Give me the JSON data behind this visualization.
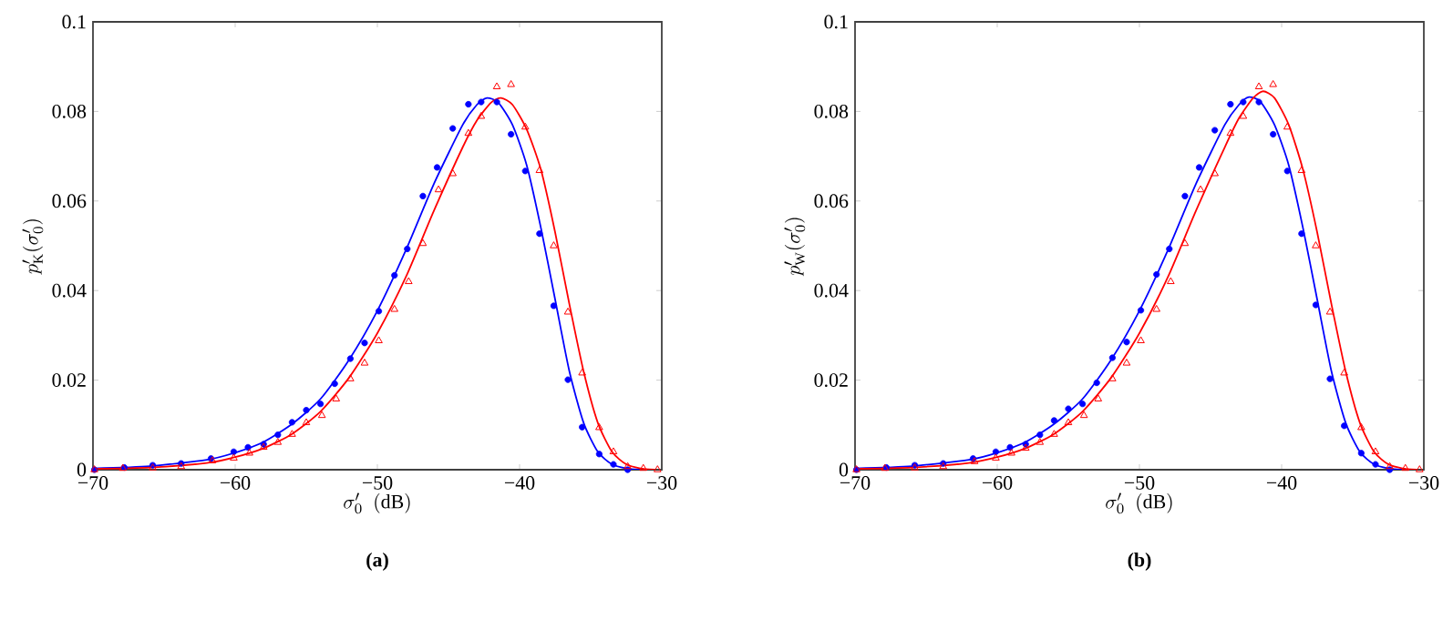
{
  "chart_data": [
    {
      "type": "line",
      "xlabel": "\\sigma'_0\\ \\ (\\mathrm{dB})",
      "ylabel": "p'_{\\mathrm{K}}(\\sigma'_0)",
      "annotations": [
        "**(a)**"
      ],
      "grid": false,
      "xlim": [
        -70,
        -30
      ],
      "ylim": [
        0,
        0.1
      ],
      "xticks": [
        {
          "value": -70,
          "label": "−70"
        },
        {
          "value": -60,
          "label": "−60"
        },
        {
          "value": -50,
          "label": "−50"
        },
        {
          "value": -40,
          "label": "−40"
        },
        {
          "value": -30,
          "label": "−30"
        }
      ],
      "yticks": [
        0,
        0.02,
        0.04,
        0.06,
        0.08,
        0.1
      ],
      "series": [
        {
          "type": "scatter",
          "marker": "circle",
          "color": "#0000ff",
          "x": [
            -69.9,
            -67.8,
            -65.8,
            -63.8,
            -61.7,
            -60.1,
            -59.1,
            -58,
            -57,
            -56,
            -55,
            -54,
            -53,
            -51.9,
            -50.9,
            -49.9,
            -48.8,
            -47.9,
            -46.8,
            -45.8,
            -44.7,
            -43.6,
            -42.7,
            -41.6,
            -40.6,
            -39.6,
            -38.6,
            -37.6,
            -36.6,
            -35.6,
            -34.4,
            -33.4,
            -32.4
          ],
          "values": [
            0,
            0.0005,
            0.001,
            0.0014,
            0.0025,
            0.004,
            0.005,
            0.0057,
            0.0078,
            0.0106,
            0.0133,
            0.0147,
            0.0192,
            0.0248,
            0.0283,
            0.0354,
            0.0434,
            0.0493,
            0.0611,
            0.0675,
            0.0762,
            0.0816,
            0.0821,
            0.0821,
            0.0749,
            0.0667,
            0.0527,
            0.0366,
            0.0201,
            0.0095,
            0.0035,
            0.0012,
            0
          ]
        },
        {
          "type": "scatter",
          "marker": "triangle",
          "color": "#ff0000",
          "x": [
            -69.9,
            -67.9,
            -65.8,
            -63.8,
            -61.6,
            -60.1,
            -59,
            -58,
            -57,
            -56,
            -55,
            -53.9,
            -52.9,
            -51.9,
            -50.9,
            -49.9,
            -48.8,
            -47.8,
            -46.8,
            -45.7,
            -44.7,
            -43.6,
            -42.7,
            -41.6,
            -40.6,
            -39.6,
            -38.6,
            -37.6,
            -36.6,
            -35.6,
            -34.4,
            -33.4,
            -32.4,
            -31.3,
            -30.3
          ],
          "values": [
            0,
            0.0003,
            0.0004,
            0.0007,
            0.002,
            0.0026,
            0.0037,
            0.005,
            0.0061,
            0.0079,
            0.0105,
            0.0121,
            0.0158,
            0.0203,
            0.0238,
            0.0288,
            0.0358,
            0.042,
            0.0505,
            0.0625,
            0.0661,
            0.0751,
            0.0789,
            0.0855,
            0.086,
            0.0765,
            0.0668,
            0.05,
            0.0352,
            0.0216,
            0.0094,
            0.004,
            0.0007,
            0.0003,
            0
          ]
        },
        {
          "type": "line",
          "marker": "none",
          "color": "#0000ff",
          "x": [
            -70,
            -66,
            -62,
            -60,
            -58,
            -56,
            -54,
            -52,
            -50,
            -48,
            -46,
            -44,
            -43,
            -42.3,
            -41.5,
            -40.5,
            -39.5,
            -38.5,
            -37.5,
            -36.5,
            -35.5,
            -34.5,
            -33.5,
            -32.5,
            -31.5
          ],
          "values": [
            0.0003,
            0.0008,
            0.0022,
            0.0038,
            0.0062,
            0.0102,
            0.0158,
            0.0245,
            0.0355,
            0.049,
            0.064,
            0.077,
            0.0815,
            0.083,
            0.082,
            0.077,
            0.068,
            0.054,
            0.038,
            0.022,
            0.0105,
            0.004,
            0.0012,
            0.0003,
            0
          ]
        },
        {
          "type": "line",
          "marker": "none",
          "color": "#ff0000",
          "x": [
            -70,
            -66,
            -62,
            -60,
            -58,
            -56,
            -54,
            -52,
            -50,
            -48,
            -46,
            -44,
            -43,
            -42,
            -41.3,
            -40.5,
            -39.5,
            -38.5,
            -37.5,
            -36.5,
            -35.5,
            -34.5,
            -33.5,
            -32.5,
            -31.5,
            -30.5
          ],
          "values": [
            0.0002,
            0.0005,
            0.0015,
            0.0028,
            0.0048,
            0.008,
            0.013,
            0.0205,
            0.0305,
            0.043,
            0.058,
            0.072,
            0.078,
            0.082,
            0.083,
            0.0815,
            0.076,
            0.067,
            0.053,
            0.037,
            0.022,
            0.0105,
            0.004,
            0.0012,
            0.0003,
            0
          ]
        }
      ]
    },
    {
      "type": "line",
      "xlabel": "\\sigma'_0\\ \\ (\\mathrm{dB})",
      "ylabel": "p'_{\\mathrm{W}}(\\sigma'_0)",
      "annotations": [
        "**(b)**"
      ],
      "grid": false,
      "xlim": [
        -70,
        -30
      ],
      "ylim": [
        0,
        0.1
      ],
      "xticks": [
        {
          "value": -70,
          "label": "−70"
        },
        {
          "value": -60,
          "label": "−60"
        },
        {
          "value": -50,
          "label": "−50"
        },
        {
          "value": -40,
          "label": "−40"
        },
        {
          "value": -30,
          "label": "−30"
        }
      ],
      "yticks": [
        0,
        0.02,
        0.04,
        0.06,
        0.08,
        0.1
      ],
      "series": [
        {
          "type": "scatter",
          "marker": "circle",
          "color": "#0000ff",
          "x": [
            -69.9,
            -67.8,
            -65.8,
            -63.8,
            -61.7,
            -60.1,
            -59.1,
            -58,
            -57,
            -56,
            -55,
            -54,
            -53,
            -51.9,
            -50.9,
            -49.9,
            -48.8,
            -47.9,
            -46.8,
            -45.8,
            -44.7,
            -43.6,
            -42.7,
            -41.6,
            -40.6,
            -39.6,
            -38.6,
            -37.6,
            -36.6,
            -35.6,
            -34.4,
            -33.4,
            -32.4
          ],
          "values": [
            0,
            0.0005,
            0.001,
            0.0014,
            0.0025,
            0.004,
            0.005,
            0.0057,
            0.0078,
            0.011,
            0.0136,
            0.0147,
            0.0194,
            0.025,
            0.0285,
            0.0356,
            0.0436,
            0.0493,
            0.0611,
            0.0675,
            0.0758,
            0.0816,
            0.0821,
            0.0821,
            0.0749,
            0.0667,
            0.0527,
            0.0368,
            0.0203,
            0.0098,
            0.0037,
            0.0012,
            0
          ]
        },
        {
          "type": "scatter",
          "marker": "triangle",
          "color": "#ff0000",
          "x": [
            -69.9,
            -67.9,
            -65.8,
            -63.8,
            -61.6,
            -60.1,
            -59,
            -58,
            -57,
            -56,
            -55,
            -53.9,
            -52.9,
            -51.9,
            -50.9,
            -49.9,
            -48.8,
            -47.8,
            -46.8,
            -45.7,
            -44.7,
            -43.6,
            -42.7,
            -41.6,
            -40.6,
            -39.6,
            -38.6,
            -37.6,
            -36.6,
            -35.6,
            -34.4,
            -33.4,
            -32.4,
            -31.3,
            -30.3
          ],
          "values": [
            0,
            0.0003,
            0.0004,
            0.0007,
            0.0018,
            0.0026,
            0.0037,
            0.0048,
            0.0061,
            0.0079,
            0.0105,
            0.0121,
            0.0158,
            0.0203,
            0.0238,
            0.0288,
            0.0358,
            0.042,
            0.0505,
            0.0625,
            0.0661,
            0.0751,
            0.0789,
            0.0855,
            0.086,
            0.0765,
            0.0668,
            0.05,
            0.0352,
            0.0216,
            0.0094,
            0.004,
            0.0007,
            0.0003,
            0
          ]
        },
        {
          "type": "line",
          "marker": "none",
          "color": "#0000ff",
          "x": [
            -70,
            -66,
            -62,
            -60,
            -58,
            -56,
            -54,
            -52,
            -50,
            -48,
            -46,
            -44,
            -43,
            -42.3,
            -41.5,
            -40.5,
            -39.5,
            -38.5,
            -37.5,
            -36.5,
            -35.5,
            -34.5,
            -33.5,
            -32.5,
            -31.5
          ],
          "values": [
            0.0003,
            0.0008,
            0.0022,
            0.0038,
            0.0062,
            0.0102,
            0.0158,
            0.0245,
            0.0355,
            0.049,
            0.064,
            0.077,
            0.0815,
            0.0832,
            0.0822,
            0.077,
            0.068,
            0.054,
            0.038,
            0.022,
            0.0105,
            0.004,
            0.0012,
            0.0003,
            0
          ]
        },
        {
          "type": "line",
          "marker": "none",
          "color": "#ff0000",
          "x": [
            -70,
            -66,
            -62,
            -60,
            -58,
            -56,
            -54,
            -52,
            -50,
            -48,
            -46,
            -44,
            -43,
            -42,
            -41.3,
            -40.5,
            -39.5,
            -38.5,
            -37.5,
            -36.5,
            -35.5,
            -34.5,
            -33.5,
            -32.5,
            -31.5,
            -30.5
          ],
          "values": [
            0.0002,
            0.0005,
            0.0015,
            0.0028,
            0.0048,
            0.008,
            0.013,
            0.0205,
            0.0305,
            0.043,
            0.058,
            0.072,
            0.0785,
            0.083,
            0.0845,
            0.083,
            0.077,
            0.067,
            0.053,
            0.037,
            0.022,
            0.0105,
            0.004,
            0.0012,
            0.0003,
            0
          ]
        }
      ]
    }
  ]
}
